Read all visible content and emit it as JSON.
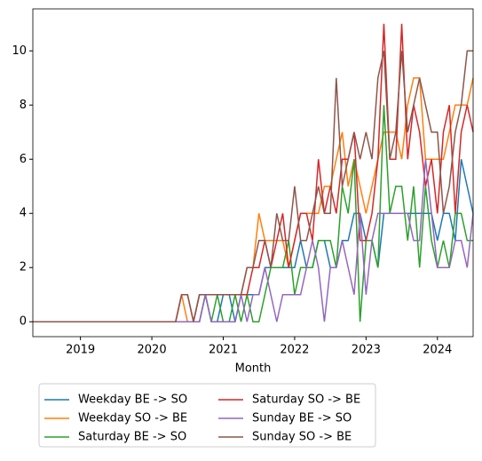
{
  "chart_data": {
    "type": "line",
    "xlabel": "Month",
    "x": [
      "2018-05",
      "2018-06",
      "2018-07",
      "2018-08",
      "2018-09",
      "2018-10",
      "2018-11",
      "2018-12",
      "2019-01",
      "2019-02",
      "2019-03",
      "2019-04",
      "2019-05",
      "2019-06",
      "2019-07",
      "2019-08",
      "2019-09",
      "2019-10",
      "2019-11",
      "2019-12",
      "2020-01",
      "2020-02",
      "2020-03",
      "2020-04",
      "2020-05",
      "2020-06",
      "2020-07",
      "2020-08",
      "2020-09",
      "2020-10",
      "2020-11",
      "2020-12",
      "2021-01",
      "2021-02",
      "2021-03",
      "2021-04",
      "2021-05",
      "2021-06",
      "2021-07",
      "2021-08",
      "2021-09",
      "2021-10",
      "2021-11",
      "2021-12",
      "2022-01",
      "2022-02",
      "2022-03",
      "2022-04",
      "2022-05",
      "2022-06",
      "2022-07",
      "2022-08",
      "2022-09",
      "2022-10",
      "2022-11",
      "2022-12",
      "2023-01",
      "2023-02",
      "2023-03",
      "2023-04",
      "2023-05",
      "2023-06",
      "2023-07",
      "2023-08",
      "2023-09",
      "2023-10",
      "2023-11",
      "2023-12",
      "2024-01",
      "2024-02",
      "2024-03",
      "2024-04",
      "2024-05",
      "2024-06",
      "2024-07"
    ],
    "xlim": [
      "2018-05",
      "2024-07"
    ],
    "xticks": [
      2019,
      2020,
      2021,
      2022,
      2023,
      2024
    ],
    "ylim": [
      -0.55,
      11.55
    ],
    "yticks": [
      0,
      2,
      4,
      6,
      8,
      10
    ],
    "legend": "below",
    "series": [
      {
        "name": "Weekday BE -> SO",
        "color": "#1f77b4",
        "values": [
          0,
          0,
          0,
          0,
          0,
          0,
          0,
          0,
          0,
          0,
          0,
          0,
          0,
          0,
          0,
          0,
          0,
          0,
          0,
          0,
          0,
          0,
          0,
          0,
          0,
          0,
          0,
          0,
          0,
          1,
          0,
          0,
          1,
          1,
          0,
          1,
          1,
          1,
          1,
          2,
          2,
          2,
          2,
          2,
          2,
          3,
          2,
          2,
          3,
          3,
          2,
          2,
          3,
          3,
          4,
          4,
          3,
          3,
          2,
          4,
          4,
          4,
          4,
          4,
          4,
          4,
          4,
          4,
          3,
          4,
          4,
          3,
          6,
          5,
          4
        ]
      },
      {
        "name": "Weekday SO -> BE",
        "color": "#ff7f0e",
        "values": [
          0,
          0,
          0,
          0,
          0,
          0,
          0,
          0,
          0,
          0,
          0,
          0,
          0,
          0,
          0,
          0,
          0,
          0,
          0,
          0,
          0,
          0,
          0,
          0,
          0,
          1,
          0,
          0,
          1,
          1,
          1,
          1,
          1,
          1,
          1,
          1,
          2,
          2,
          4,
          3,
          3,
          3,
          3,
          2,
          3,
          4,
          4,
          4,
          4,
          5,
          5,
          6,
          7,
          5,
          6,
          5,
          4,
          5,
          6,
          7,
          7,
          7,
          6,
          8,
          9,
          9,
          6,
          6,
          6,
          6,
          7,
          8,
          8,
          8,
          9
        ]
      },
      {
        "name": "Saturday BE -> SO",
        "color": "#2ca02c",
        "values": [
          0,
          0,
          0,
          0,
          0,
          0,
          0,
          0,
          0,
          0,
          0,
          0,
          0,
          0,
          0,
          0,
          0,
          0,
          0,
          0,
          0,
          0,
          0,
          0,
          0,
          0,
          0,
          0,
          0,
          1,
          0,
          1,
          0,
          0,
          1,
          0,
          1,
          0,
          0,
          1,
          2,
          2,
          2,
          3,
          1,
          2,
          2,
          2,
          3,
          3,
          3,
          2,
          5,
          4,
          6,
          0,
          3,
          3,
          2,
          8,
          4,
          5,
          5,
          3,
          5,
          2,
          5,
          3,
          2,
          3,
          2,
          4,
          4,
          3,
          3
        ]
      },
      {
        "name": "Saturday SO -> BE",
        "color": "#d62728",
        "values": [
          0,
          0,
          0,
          0,
          0,
          0,
          0,
          0,
          0,
          0,
          0,
          0,
          0,
          0,
          0,
          0,
          0,
          0,
          0,
          0,
          0,
          0,
          0,
          0,
          0,
          1,
          1,
          0,
          1,
          1,
          1,
          1,
          1,
          1,
          1,
          1,
          1,
          2,
          2,
          3,
          2,
          3,
          4,
          2,
          3,
          4,
          4,
          3,
          6,
          4,
          5,
          4,
          6,
          6,
          7,
          3,
          3,
          4,
          6,
          11,
          6,
          6,
          11,
          6,
          8,
          7,
          5,
          6,
          4,
          7,
          8,
          4,
          7,
          8,
          7
        ]
      },
      {
        "name": "Sunday BE -> SO",
        "color": "#9467bd",
        "values": [
          0,
          0,
          0,
          0,
          0,
          0,
          0,
          0,
          0,
          0,
          0,
          0,
          0,
          0,
          0,
          0,
          0,
          0,
          0,
          0,
          0,
          0,
          0,
          0,
          0,
          0,
          0,
          0,
          0,
          1,
          0,
          0,
          0,
          0,
          0,
          1,
          0,
          1,
          1,
          2,
          1,
          0,
          1,
          1,
          1,
          1,
          2,
          3,
          2,
          0,
          2,
          2,
          3,
          2,
          1,
          4,
          1,
          3,
          4,
          4,
          4,
          4,
          4,
          4,
          3,
          3,
          6,
          4,
          2,
          2,
          2,
          3,
          3,
          2,
          4
        ]
      },
      {
        "name": "Sunday SO -> BE",
        "color": "#8c564b",
        "values": [
          0,
          0,
          0,
          0,
          0,
          0,
          0,
          0,
          0,
          0,
          0,
          0,
          0,
          0,
          0,
          0,
          0,
          0,
          0,
          0,
          0,
          0,
          0,
          0,
          0,
          1,
          1,
          0,
          1,
          1,
          1,
          1,
          1,
          1,
          1,
          1,
          2,
          2,
          3,
          3,
          2,
          4,
          3,
          3,
          5,
          3,
          3,
          4,
          5,
          4,
          4,
          9,
          5,
          6,
          7,
          6,
          7,
          6,
          9,
          10,
          6,
          7,
          10,
          7,
          8,
          9,
          8,
          7,
          7,
          4,
          5,
          7,
          8,
          10,
          10
        ]
      }
    ]
  }
}
